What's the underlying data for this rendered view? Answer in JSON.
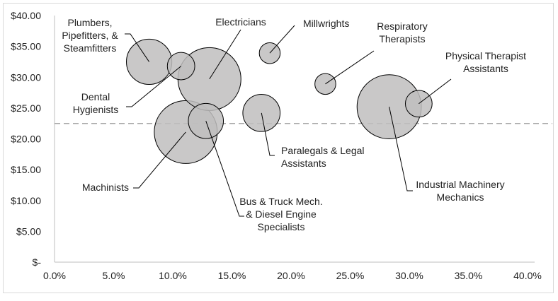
{
  "chart_data": {
    "type": "scatter",
    "subtype": "bubble",
    "title": "",
    "xlabel": "",
    "ylabel": "",
    "xlim": [
      0,
      40
    ],
    "ylim": [
      0,
      40
    ],
    "x_ticks": [
      "0.0%",
      "5.0%",
      "10.0%",
      "15.0%",
      "20.0%",
      "25.0%",
      "30.0%",
      "35.0%",
      "40.0%"
    ],
    "y_ticks": [
      "$-",
      "$5.00",
      "$10.00",
      "$15.00",
      "$20.00",
      "$25.00",
      "$30.00",
      "$35.00",
      "$40.00"
    ],
    "grid": false,
    "reference_line": {
      "y": 22.5,
      "style": "dashed",
      "color": "#a6a6a6"
    },
    "bubble_color": "#bfbebe",
    "points": [
      {
        "label": [
          "Plumbers,",
          "Pipefitters, &",
          "Steamfitters"
        ],
        "x": 8.0,
        "y": 32.5,
        "size": 52
      },
      {
        "label": [
          "Dental",
          "Hygienists"
        ],
        "x": 10.7,
        "y": 31.8,
        "size": 19
      },
      {
        "label": [
          "Electricians"
        ],
        "x": 13.1,
        "y": 29.7,
        "size": 100
      },
      {
        "label": [
          "Millwrights"
        ],
        "x": 18.2,
        "y": 33.9,
        "size": 11
      },
      {
        "label": [
          "Respiratory",
          "Therapists"
        ],
        "x": 22.9,
        "y": 28.9,
        "size": 11
      },
      {
        "label": [
          "Physical Therapist",
          "Assistants"
        ],
        "x": 30.8,
        "y": 25.7,
        "size": 18
      },
      {
        "label": [
          "Industrial Machinery",
          "Mechanics"
        ],
        "x": 28.3,
        "y": 25.2,
        "size": 104
      },
      {
        "label": [
          "Paralegals & Legal",
          "Assistants"
        ],
        "x": 17.5,
        "y": 24.2,
        "size": 35
      },
      {
        "label": [
          "Machinists"
        ],
        "x": 11.1,
        "y": 21.1,
        "size": 100
      },
      {
        "label": [
          "Bus & Truck Mech.",
          "& Diesel Engine",
          "Specialists"
        ],
        "x": 12.8,
        "y": 22.9,
        "size": 31
      }
    ]
  }
}
